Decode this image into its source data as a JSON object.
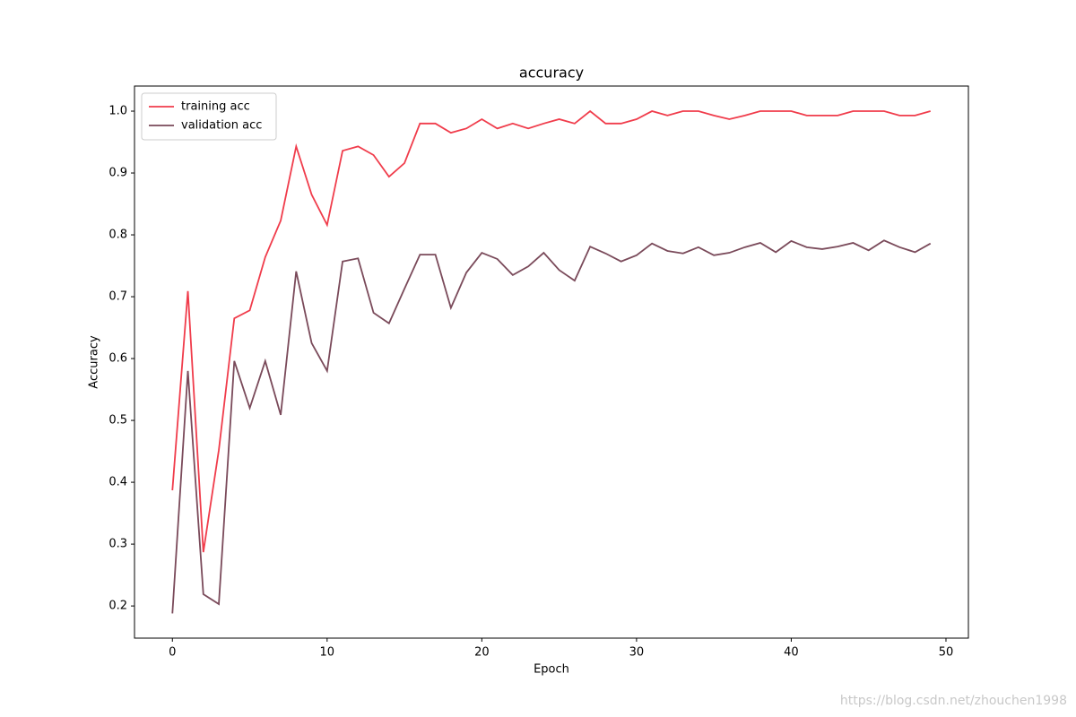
{
  "chart_data": {
    "type": "line",
    "title": "accuracy",
    "x_label": "Epoch",
    "y_label": "Accuracy",
    "x": [
      0,
      1,
      2,
      3,
      4,
      5,
      6,
      7,
      8,
      9,
      10,
      11,
      12,
      13,
      14,
      15,
      16,
      17,
      18,
      19,
      20,
      21,
      22,
      23,
      24,
      25,
      26,
      27,
      28,
      29,
      30,
      31,
      32,
      33,
      34,
      35,
      36,
      37,
      38,
      39,
      40,
      41,
      42,
      43,
      44,
      45,
      46,
      47,
      48,
      49
    ],
    "series": [
      {
        "name": "training acc",
        "color": "#f03c4b",
        "values": [
          0.387,
          0.709,
          0.287,
          0.452,
          0.665,
          0.678,
          0.764,
          0.823,
          0.943,
          0.865,
          0.816,
          0.936,
          0.943,
          0.929,
          0.894,
          0.916,
          0.98,
          0.98,
          0.965,
          0.972,
          0.987,
          0.972,
          0.98,
          0.972,
          0.98,
          0.987,
          0.98,
          1.0,
          0.98,
          0.98,
          0.987,
          1.0,
          0.993,
          1.0,
          1.0,
          0.993,
          0.987,
          0.993,
          1.0,
          1.0,
          1.0,
          0.993,
          0.993,
          0.993,
          1.0,
          1.0,
          1.0,
          0.993,
          0.993,
          1.0
        ]
      },
      {
        "name": "validation acc",
        "color": "#7a4a5a",
        "values": [
          0.188,
          0.58,
          0.219,
          0.203,
          0.596,
          0.52,
          0.596,
          0.509,
          0.741,
          0.625,
          0.58,
          0.757,
          0.762,
          0.674,
          0.657,
          0.713,
          0.768,
          0.768,
          0.682,
          0.739,
          0.771,
          0.761,
          0.735,
          0.749,
          0.771,
          0.743,
          0.726,
          0.781,
          0.77,
          0.757,
          0.767,
          0.786,
          0.774,
          0.77,
          0.78,
          0.767,
          0.771,
          0.78,
          0.787,
          0.772,
          0.79,
          0.78,
          0.777,
          0.781,
          0.787,
          0.775,
          0.791,
          0.78,
          0.772,
          0.786
        ]
      }
    ],
    "xlim": [
      -2.45,
      51.45
    ],
    "xticks": [
      0,
      10,
      20,
      30,
      40,
      50
    ],
    "ylim": [
      0.148,
      1.0406
    ],
    "yticks": [
      0.2,
      0.3,
      0.4,
      0.5,
      0.6,
      0.7,
      0.8,
      0.9,
      {
        "value": 1,
        "label": "1.0"
      }
    ],
    "legend": "upper left",
    "grid": false,
    "watermark": "https://blog.csdn.net/zhouchen1998"
  }
}
